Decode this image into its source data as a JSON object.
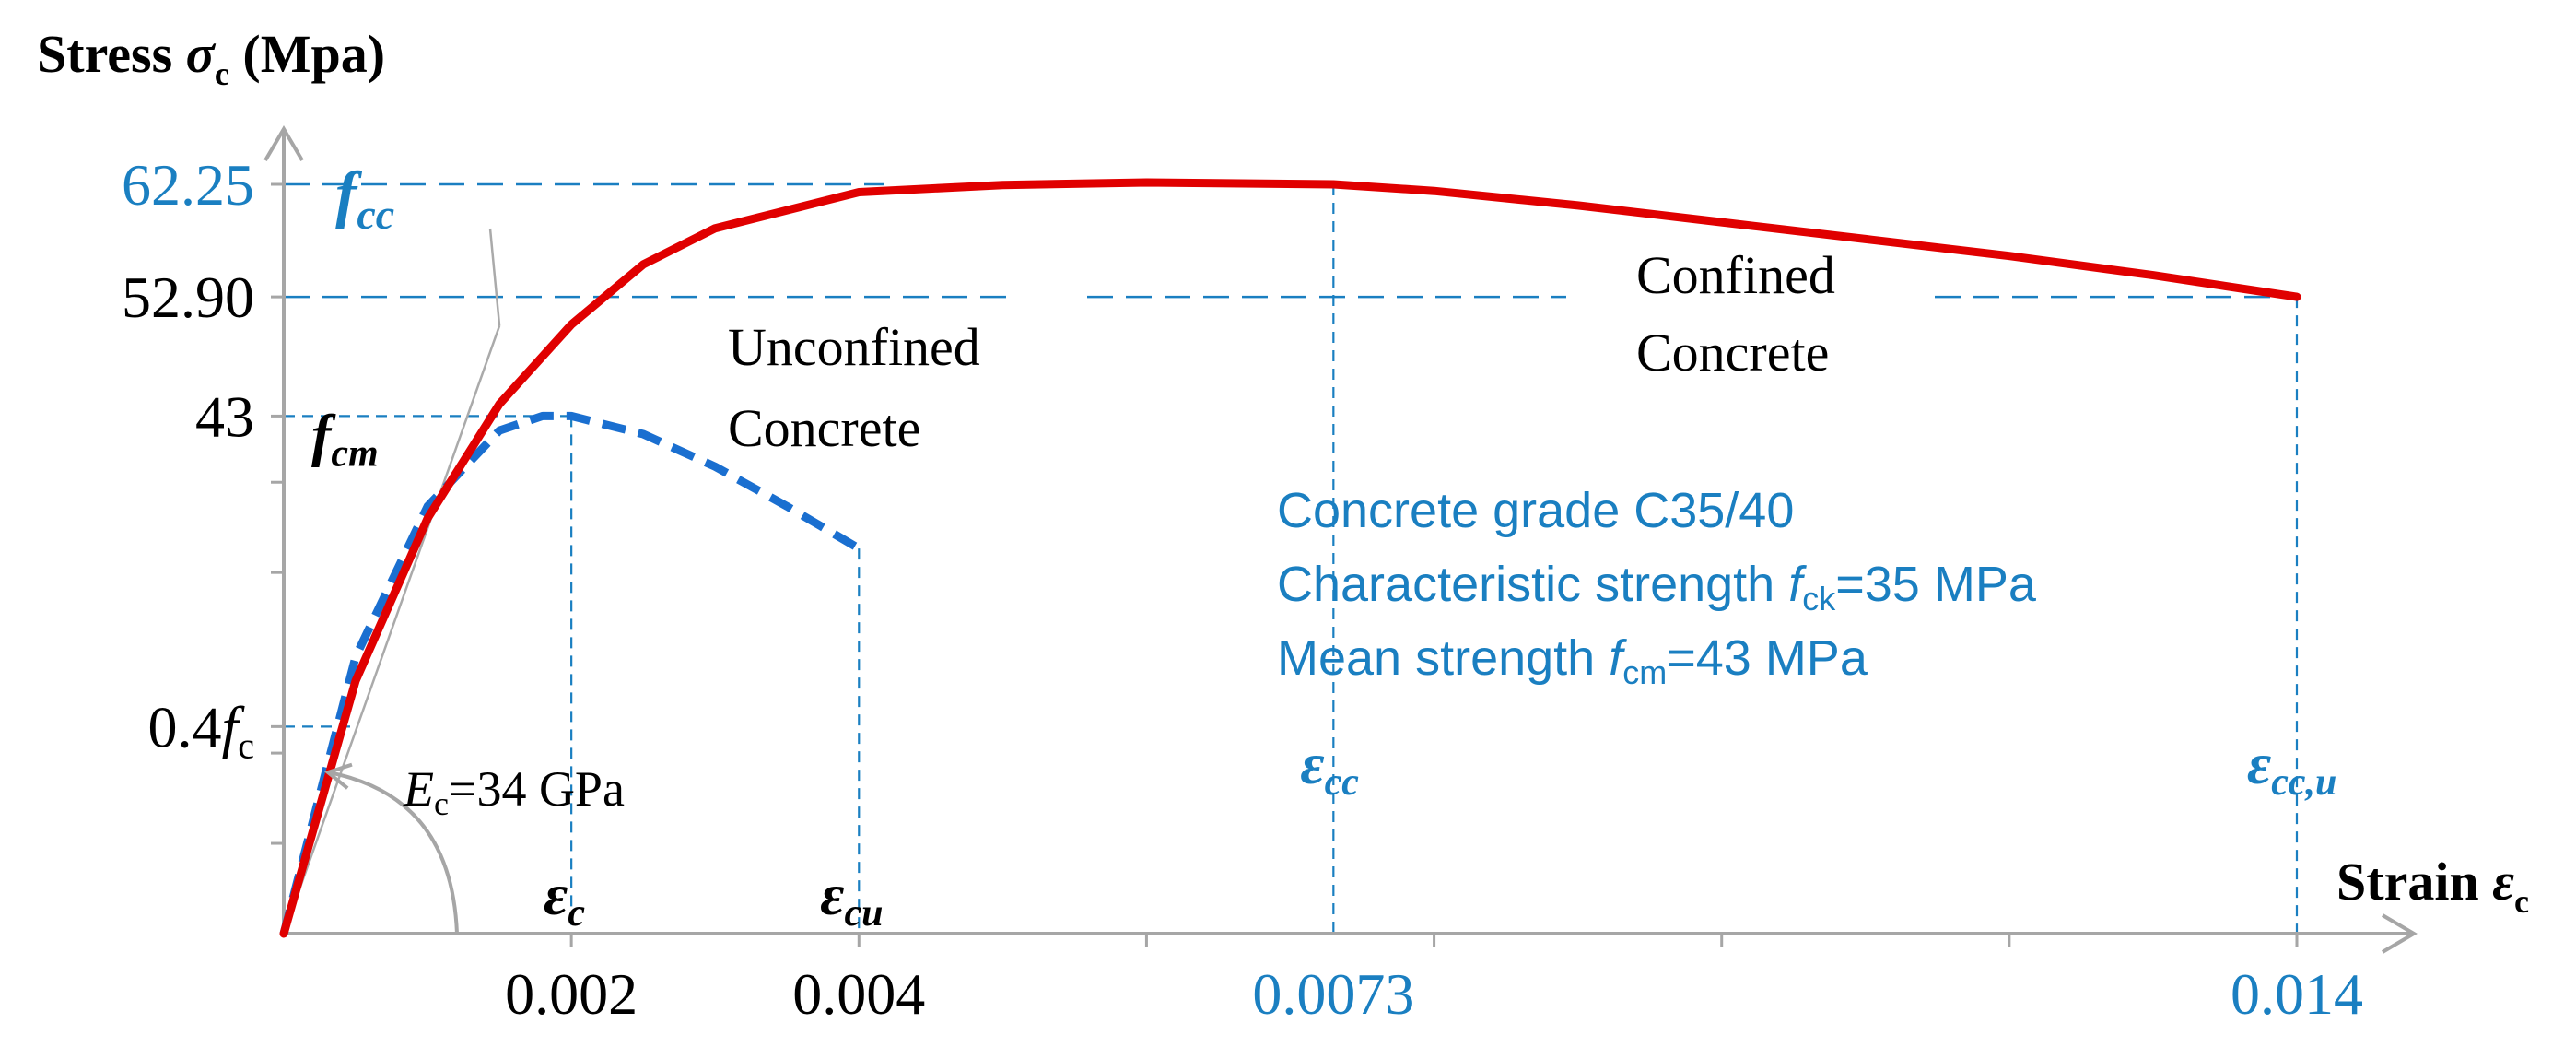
{
  "chart_data": {
    "type": "line",
    "ylabel": "Stress σc (Mpa)",
    "ylabel_main": "Stress ",
    "ylabel_sym": "σ",
    "ylabel_sub": "c",
    "ylabel_unit": " (Mpa)",
    "xlabel": "Strain εc",
    "xlabel_main": "Strain ",
    "xlabel_sym": "ε",
    "xlabel_sub": "c",
    "xlim": [
      0,
      0.0146
    ],
    "ylim": [
      0,
      66
    ],
    "x_ticks": [
      {
        "value": 0.002,
        "label": "0.002",
        "color": "#000000"
      },
      {
        "value": 0.004,
        "label": "0.004",
        "color": "#000000"
      },
      {
        "value": 0.0073,
        "label": "0.0073",
        "color": "#1a7fc1"
      },
      {
        "value": 0.014,
        "label": "0.014",
        "color": "#1a7fc1"
      }
    ],
    "x_minor_ticks": [
      0.002,
      0.004,
      0.006,
      0.008,
      0.01,
      0.012,
      0.014
    ],
    "y_ticks": [
      {
        "value": 62.25,
        "label": "62.25",
        "color": "#1a7fc1"
      },
      {
        "value": 52.9,
        "label": "52.90",
        "color": "#000000"
      },
      {
        "value": 43,
        "label": "43",
        "color": "#000000"
      },
      {
        "value": 17.2,
        "label": "0.4f",
        "label_sub": "c",
        "color": "#000000"
      }
    ],
    "y_minor_ticks": [
      7.5,
      15,
      30,
      37.5
    ],
    "series": [
      {
        "name": "Confined Concrete",
        "label_line1": "Confined",
        "label_line2": "Concrete",
        "color": "#e00000",
        "style": "solid",
        "x": [
          0,
          0.0005,
          0.001,
          0.0015,
          0.002,
          0.0025,
          0.003,
          0.004,
          0.005,
          0.006,
          0.0073,
          0.008,
          0.009,
          0.01,
          0.011,
          0.012,
          0.013,
          0.014
        ],
        "y": [
          0,
          21,
          34.5,
          44,
          50.6,
          55.6,
          58.6,
          61.6,
          62.2,
          62.4,
          62.25,
          61.7,
          60.5,
          59.1,
          57.7,
          56.3,
          54.7,
          52.9
        ]
      },
      {
        "name": "Unconfined Concrete",
        "label_line1": "Unconfined",
        "label_line2": "Concrete",
        "color": "#1a6fd0",
        "style": "dashed",
        "x": [
          0,
          0.0005,
          0.001,
          0.0015,
          0.0018,
          0.002,
          0.0025,
          0.003,
          0.0035,
          0.004
        ],
        "y": [
          0,
          23,
          35.5,
          41.8,
          43,
          43,
          41.5,
          38.8,
          35.5,
          32
        ]
      }
    ],
    "elastic_line": {
      "x": [
        0,
        0.0015
      ],
      "y": [
        0,
        50.5
      ],
      "color": "#aaaaaa"
    },
    "annotations": {
      "fcc": {
        "sym": "f",
        "sub": "cc"
      },
      "fcm": {
        "sym": "f",
        "sub": "cm"
      },
      "ec_label": {
        "sym": "ε",
        "sub": "c"
      },
      "ecu_label": {
        "sym": "ε",
        "sub": "cu"
      },
      "ecc_label": {
        "sym": "ε",
        "sub": "cc"
      },
      "eccu_label": {
        "sym": "ε",
        "sub": "cc,u"
      },
      "modulus": {
        "sym": "E",
        "sub": "c",
        "text": "=34 GPa"
      },
      "info_line1": "Concrete grade C35/40",
      "info_line2_pre": "Characteristic strength ",
      "info_line2_sym": "f",
      "info_line2_sub": "ck",
      "info_line2_post": "=35 MPa",
      "info_line3_pre": "Mean strength ",
      "info_line3_sym": "f",
      "info_line3_sub": "cm",
      "info_line3_post": "=43 MPa"
    },
    "grid": false,
    "legend": "none"
  }
}
